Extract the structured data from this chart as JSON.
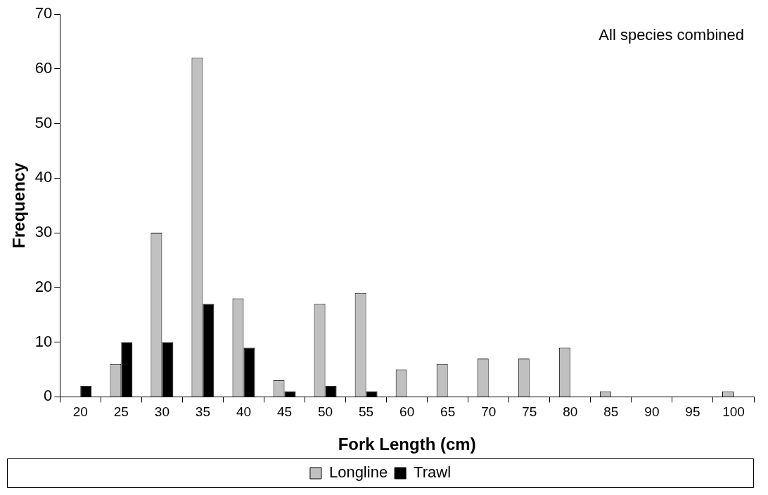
{
  "chart_data": {
    "type": "bar",
    "xlabel": "Fork Length (cm)",
    "ylabel": "Frequency",
    "annotations": [
      "All species combined"
    ],
    "categories": [
      "20",
      "25",
      "30",
      "35",
      "40",
      "45",
      "50",
      "55",
      "60",
      "65",
      "70",
      "75",
      "80",
      "85",
      "90",
      "95",
      "100"
    ],
    "series": [
      {
        "name": "Longline",
        "color": "#c0c0c0",
        "values": [
          0,
          6,
          30,
          62,
          18,
          3,
          17,
          19,
          5,
          6,
          7,
          7,
          9,
          1,
          0,
          0,
          1
        ]
      },
      {
        "name": "Trawl",
        "color": "#000000",
        "values": [
          2,
          10,
          10,
          17,
          9,
          1,
          2,
          1,
          0,
          0,
          0,
          0,
          0,
          0,
          0,
          0,
          0
        ]
      }
    ],
    "ylim": [
      0,
      70
    ],
    "yticks": [
      0,
      10,
      20,
      30,
      40,
      50,
      60,
      70
    ],
    "grid": false,
    "legend": "bottom"
  }
}
